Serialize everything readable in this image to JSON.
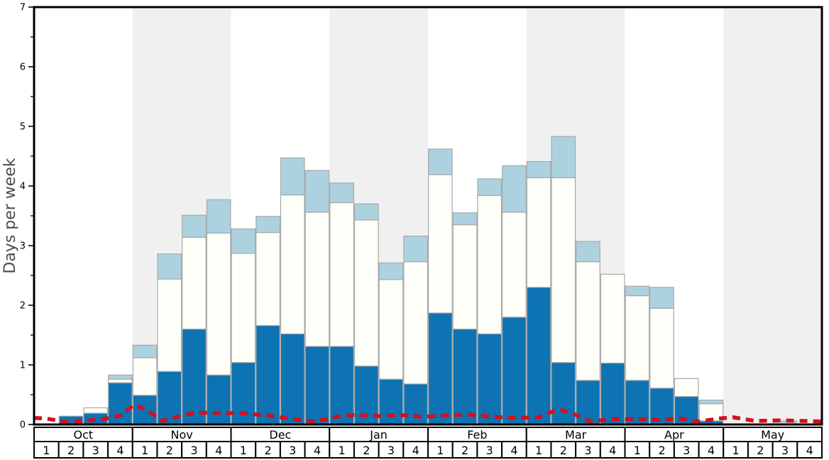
{
  "chart_data": {
    "type": "bar",
    "stacked": true,
    "ylabel": "Days per week",
    "ylim": [
      0,
      7
    ],
    "y_major_ticks": [
      "0",
      "1",
      "2",
      "3",
      "4",
      "5",
      "6",
      "7"
    ],
    "y_minor_tick_step": 0.5,
    "grid": false,
    "legend_position": "none",
    "months": [
      "Oct",
      "Nov",
      "Dec",
      "Jan",
      "Feb",
      "Mar",
      "Apr",
      "May"
    ],
    "week_labels": [
      "1",
      "2",
      "3",
      "4"
    ],
    "series": [
      {
        "name": "dark-blue-bottom-segment",
        "color": "#0d73b3"
      },
      {
        "name": "white-middle-segment",
        "color": "#fffffa"
      },
      {
        "name": "light-blue-top-segment",
        "color": "#acd2e0"
      }
    ],
    "bars": [
      {
        "month": "Oct",
        "week": 1,
        "dark": 0.0,
        "white": 0.0,
        "total": 0.0
      },
      {
        "month": "Oct",
        "week": 2,
        "dark": 0.14,
        "white": 0.14,
        "total": 0.14
      },
      {
        "month": "Oct",
        "week": 3,
        "dark": 0.19,
        "white": 0.28,
        "total": 0.28
      },
      {
        "month": "Oct",
        "week": 4,
        "dark": 0.7,
        "white": 0.76,
        "total": 0.83
      },
      {
        "month": "Nov",
        "week": 1,
        "dark": 0.49,
        "white": 1.12,
        "total": 1.33
      },
      {
        "month": "Nov",
        "week": 2,
        "dark": 0.89,
        "white": 2.44,
        "total": 2.86
      },
      {
        "month": "Nov",
        "week": 3,
        "dark": 1.6,
        "white": 3.14,
        "total": 3.51
      },
      {
        "month": "Nov",
        "week": 4,
        "dark": 0.83,
        "white": 3.21,
        "total": 3.77
      },
      {
        "month": "Dec",
        "week": 1,
        "dark": 1.04,
        "white": 2.87,
        "total": 3.28
      },
      {
        "month": "Dec",
        "week": 2,
        "dark": 1.66,
        "white": 3.22,
        "total": 3.49
      },
      {
        "month": "Dec",
        "week": 3,
        "dark": 1.52,
        "white": 3.85,
        "total": 4.47
      },
      {
        "month": "Dec",
        "week": 4,
        "dark": 1.31,
        "white": 3.56,
        "total": 4.26
      },
      {
        "month": "Jan",
        "week": 1,
        "dark": 1.31,
        "white": 3.72,
        "total": 4.05
      },
      {
        "month": "Jan",
        "week": 2,
        "dark": 0.98,
        "white": 3.43,
        "total": 3.7
      },
      {
        "month": "Jan",
        "week": 3,
        "dark": 0.76,
        "white": 2.43,
        "total": 2.71
      },
      {
        "month": "Jan",
        "week": 4,
        "dark": 0.68,
        "white": 2.73,
        "total": 3.16
      },
      {
        "month": "Feb",
        "week": 1,
        "dark": 1.87,
        "white": 4.19,
        "total": 4.62
      },
      {
        "month": "Feb",
        "week": 2,
        "dark": 1.6,
        "white": 3.35,
        "total": 3.55
      },
      {
        "month": "Feb",
        "week": 3,
        "dark": 1.52,
        "white": 3.84,
        "total": 4.12
      },
      {
        "month": "Feb",
        "week": 4,
        "dark": 1.8,
        "white": 3.56,
        "total": 4.34
      },
      {
        "month": "Mar",
        "week": 1,
        "dark": 2.3,
        "white": 4.14,
        "total": 4.41
      },
      {
        "month": "Mar",
        "week": 2,
        "dark": 1.04,
        "white": 4.14,
        "total": 4.83
      },
      {
        "month": "Mar",
        "week": 3,
        "dark": 0.74,
        "white": 2.73,
        "total": 3.07
      },
      {
        "month": "Mar",
        "week": 4,
        "dark": 1.03,
        "white": 2.52,
        "total": 2.52
      },
      {
        "month": "Apr",
        "week": 1,
        "dark": 0.74,
        "white": 2.16,
        "total": 2.32
      },
      {
        "month": "Apr",
        "week": 2,
        "dark": 0.61,
        "white": 1.95,
        "total": 2.3
      },
      {
        "month": "Apr",
        "week": 3,
        "dark": 0.47,
        "white": 0.77,
        "total": 0.77
      },
      {
        "month": "Apr",
        "week": 4,
        "dark": 0.06,
        "white": 0.35,
        "total": 0.41
      },
      {
        "month": "May",
        "week": 1,
        "dark": 0.0,
        "white": 0.0,
        "total": 0.0
      },
      {
        "month": "May",
        "week": 2,
        "dark": 0.0,
        "white": 0.0,
        "total": 0.0
      },
      {
        "month": "May",
        "week": 3,
        "dark": 0.0,
        "white": 0.0,
        "total": 0.06
      },
      {
        "month": "May",
        "week": 4,
        "dark": 0.0,
        "white": 0.0,
        "total": 0.0
      }
    ],
    "red_line": {
      "name": "red-dashed-line",
      "color": "#d2101f",
      "points_week_units": [
        [
          0.0,
          0.11
        ],
        [
          0.5,
          0.1
        ],
        [
          1.3,
          0.04
        ],
        [
          2.0,
          0.06
        ],
        [
          2.8,
          0.09
        ],
        [
          3.5,
          0.15
        ],
        [
          4.05,
          0.33
        ],
        [
          4.6,
          0.24
        ],
        [
          5.2,
          0.06
        ],
        [
          6.0,
          0.15
        ],
        [
          6.6,
          0.2
        ],
        [
          7.5,
          0.19
        ],
        [
          8.5,
          0.19
        ],
        [
          9.5,
          0.15
        ],
        [
          10.5,
          0.09
        ],
        [
          11.4,
          0.05
        ],
        [
          12.3,
          0.13
        ],
        [
          13.0,
          0.16
        ],
        [
          14.0,
          0.14
        ],
        [
          14.8,
          0.16
        ],
        [
          15.8,
          0.13
        ],
        [
          16.8,
          0.15
        ],
        [
          17.6,
          0.17
        ],
        [
          18.6,
          0.13
        ],
        [
          19.5,
          0.11
        ],
        [
          20.5,
          0.12
        ],
        [
          21.3,
          0.26
        ],
        [
          21.9,
          0.18
        ],
        [
          22.6,
          0.05
        ],
        [
          23.5,
          0.09
        ],
        [
          24.5,
          0.09
        ],
        [
          25.5,
          0.08
        ],
        [
          26.2,
          0.1
        ],
        [
          27.0,
          0.05
        ],
        [
          27.8,
          0.1
        ],
        [
          28.4,
          0.12
        ],
        [
          29.3,
          0.06
        ],
        [
          30.3,
          0.07
        ],
        [
          31.3,
          0.06
        ],
        [
          32.0,
          0.05
        ]
      ]
    },
    "colors": {
      "band_gray": "#f0f0f0",
      "bar_stroke": "#a8a8a8",
      "axis": "#000000",
      "ylabel": "#4d4d4d",
      "background": "#ffffff"
    }
  }
}
